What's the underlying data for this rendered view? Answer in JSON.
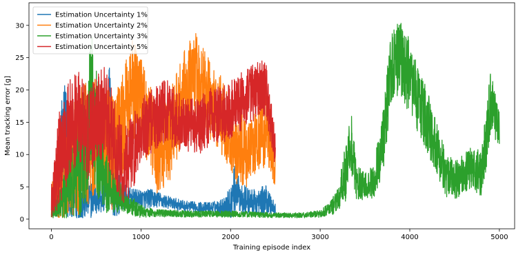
{
  "chart_data": {
    "type": "line",
    "xlabel": "Training episode index",
    "ylabel": "Mean tracking error [g]",
    "xlim": [
      -250,
      5170
    ],
    "ylim": [
      -1.5,
      33.5
    ],
    "xticks": [
      0,
      1000,
      2000,
      3000,
      4000,
      5000
    ],
    "yticks": [
      0,
      5,
      10,
      15,
      20,
      25,
      30
    ],
    "grid": false,
    "legend_position": "top-left",
    "series": [
      {
        "name": "Estimation Uncertainty 1%",
        "color": "#1f77b4",
        "x_start": 0,
        "x_end": 2500,
        "x": [
          0,
          30,
          60,
          100,
          150,
          200,
          250,
          300,
          400,
          500,
          600,
          650,
          700,
          800,
          900,
          1000,
          1100,
          1200,
          1300,
          1400,
          1500,
          1600,
          1700,
          1800,
          1900,
          2000,
          2050,
          2100,
          2200,
          2300,
          2400,
          2500
        ],
        "y": [
          1.5,
          4,
          5,
          8,
          12,
          6,
          3,
          2.5,
          3,
          3.5,
          4,
          15,
          5,
          3.5,
          3.2,
          3,
          3.2,
          3,
          2.6,
          2.3,
          2,
          1.9,
          1.8,
          1.8,
          1.9,
          2.5,
          5,
          3.5,
          2.8,
          2.5,
          3,
          1.5
        ],
        "noise": [
          1,
          4,
          6,
          10,
          12,
          8,
          4,
          3,
          3,
          3,
          3,
          12,
          5,
          2,
          1.5,
          1.5,
          1.5,
          1.2,
          1,
          0.9,
          0.8,
          0.8,
          0.8,
          0.9,
          1.2,
          2.5,
          4,
          2.5,
          2,
          2,
          2.5,
          1
        ]
      },
      {
        "name": "Estimation Uncertainty 2%",
        "color": "#ff7f0e",
        "x_start": 0,
        "x_end": 2500,
        "x": [
          0,
          100,
          200,
          300,
          400,
          500,
          600,
          700,
          800,
          900,
          1000,
          1100,
          1200,
          1300,
          1400,
          1500,
          1600,
          1700,
          1800,
          1900,
          2000,
          2100,
          2200,
          2300,
          2400,
          2500
        ],
        "y": [
          3,
          5,
          8,
          10,
          12,
          13,
          12,
          10,
          15,
          20,
          19,
          14,
          10,
          12,
          16,
          20,
          22,
          20,
          18,
          16,
          12,
          11,
          10,
          12,
          14,
          9
        ],
        "noise": [
          3,
          6,
          8,
          10,
          10,
          9,
          9,
          9,
          8,
          8,
          7,
          7,
          7,
          7,
          7,
          7,
          7,
          7,
          6,
          6,
          6,
          6,
          5,
          5,
          6,
          4
        ]
      },
      {
        "name": "Estimation Uncertainty 3%",
        "color": "#2ca02c",
        "x_start": 0,
        "x_end": 5000,
        "x": [
          0,
          100,
          200,
          300,
          400,
          450,
          500,
          550,
          600,
          700,
          800,
          900,
          1000,
          1100,
          1200,
          1500,
          2000,
          2500,
          2800,
          3000,
          3100,
          3200,
          3300,
          3350,
          3400,
          3500,
          3600,
          3700,
          3800,
          3900,
          4000,
          4100,
          4200,
          4300,
          4400,
          4500,
          4600,
          4700,
          4800,
          4850,
          4900,
          4950,
          5000
        ],
        "y": [
          1,
          2,
          5,
          8,
          12,
          18,
          14,
          10,
          6,
          4,
          3,
          2,
          1.2,
          1,
          0.9,
          0.8,
          0.8,
          0.6,
          0.6,
          0.8,
          1.5,
          3,
          8,
          12,
          6,
          5,
          6,
          12,
          24,
          25,
          22,
          18,
          15,
          11,
          7,
          6,
          7,
          8,
          7,
          12,
          18,
          16,
          14
        ],
        "noise": [
          1,
          3,
          5,
          8,
          10,
          12,
          10,
          8,
          5,
          3,
          2,
          1.5,
          1,
          0.7,
          0.6,
          0.5,
          0.5,
          0.4,
          0.4,
          0.6,
          1,
          2,
          5,
          5,
          3,
          2,
          3,
          5,
          6,
          6,
          6,
          5,
          5,
          4,
          3.5,
          3,
          3,
          3.5,
          3.5,
          5,
          5,
          4,
          3
        ]
      },
      {
        "name": "Estimation Uncertainty 5%",
        "color": "#d62728",
        "x_start": 0,
        "x_end": 2500,
        "x": [
          0,
          100,
          200,
          300,
          400,
          500,
          600,
          700,
          800,
          900,
          1000,
          1100,
          1200,
          1300,
          1400,
          1500,
          1600,
          1700,
          1800,
          1900,
          2000,
          2100,
          2200,
          2300,
          2400,
          2500
        ],
        "y": [
          3,
          10,
          14,
          16,
          13,
          15,
          17,
          12,
          8,
          10,
          14,
          15,
          16,
          17,
          15,
          15,
          14,
          15,
          16,
          16,
          17,
          18,
          19,
          20,
          20,
          10
        ],
        "noise": [
          3,
          8,
          8,
          7,
          7,
          7,
          7,
          7,
          6,
          6,
          5,
          5,
          5,
          5,
          5,
          4.5,
          4.5,
          4.5,
          4.5,
          4.5,
          4.5,
          4.5,
          4.5,
          4.5,
          4.5,
          3
        ]
      }
    ]
  }
}
